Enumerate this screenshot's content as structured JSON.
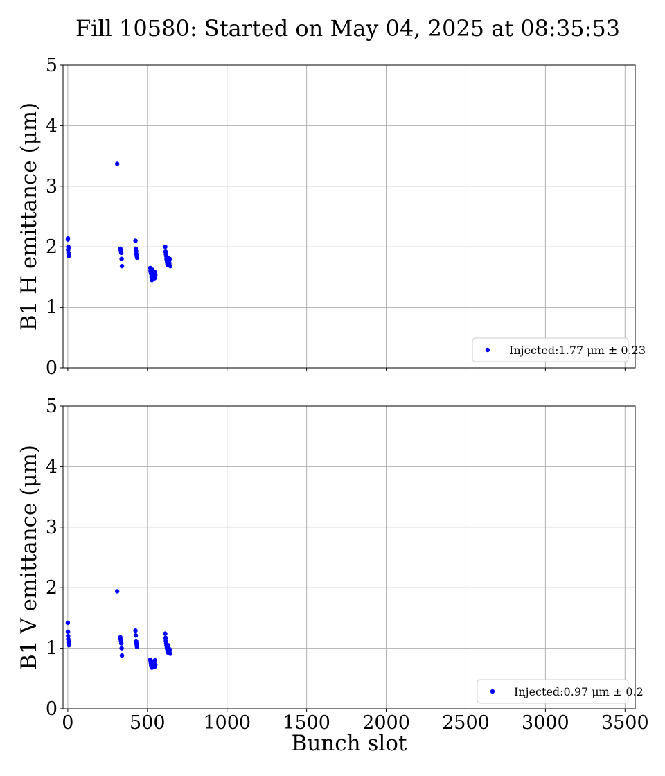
{
  "figure": {
    "title": "Fill 10580: Started on May 04, 2025 at 08:35:53"
  },
  "chart_data": [
    {
      "type": "scatter",
      "ylabel": "B1 H emittance (μm)",
      "xlabel": "",
      "xlim": [
        -30,
        3564
      ],
      "ylim": [
        0,
        5
      ],
      "xticks": [
        0,
        500,
        1000,
        1500,
        2000,
        2500,
        3000,
        3500
      ],
      "yticks": [
        0,
        1,
        2,
        3,
        4,
        5
      ],
      "show_xtick_labels": false,
      "grid": true,
      "legend_position": "lower-right",
      "color": "#0000ff",
      "series": [
        {
          "name": "Injected:1.77 μm ± 0.23",
          "points": [
            [
              0,
              2.12
            ],
            [
              1,
              2.14
            ],
            [
              2,
              1.95
            ],
            [
              3,
              2.0
            ],
            [
              4,
              1.9
            ],
            [
              5,
              1.98
            ],
            [
              6,
              1.85
            ],
            [
              7,
              1.88
            ],
            [
              310,
              3.37
            ],
            [
              330,
              1.97
            ],
            [
              332,
              1.95
            ],
            [
              334,
              1.92
            ],
            [
              336,
              1.9
            ],
            [
              338,
              1.8
            ],
            [
              340,
              1.68
            ],
            [
              425,
              2.1
            ],
            [
              427,
              1.97
            ],
            [
              429,
              1.93
            ],
            [
              431,
              1.88
            ],
            [
              433,
              1.85
            ],
            [
              435,
              1.82
            ],
            [
              518,
              1.65
            ],
            [
              520,
              1.6
            ],
            [
              522,
              1.57
            ],
            [
              524,
              1.55
            ],
            [
              526,
              1.5
            ],
            [
              528,
              1.45
            ],
            [
              532,
              1.62
            ],
            [
              538,
              1.55
            ],
            [
              542,
              1.5
            ],
            [
              545,
              1.48
            ],
            [
              548,
              1.58
            ],
            [
              550,
              1.53
            ],
            [
              612,
              2.0
            ],
            [
              614,
              1.92
            ],
            [
              616,
              1.88
            ],
            [
              618,
              1.85
            ],
            [
              620,
              1.8
            ],
            [
              622,
              1.78
            ],
            [
              624,
              1.75
            ],
            [
              626,
              1.72
            ],
            [
              628,
              1.7
            ],
            [
              630,
              1.82
            ],
            [
              634,
              1.76
            ],
            [
              638,
              1.73
            ],
            [
              640,
              1.8
            ],
            [
              644,
              1.68
            ]
          ]
        }
      ]
    },
    {
      "type": "scatter",
      "ylabel": "B1 V emittance (μm)",
      "xlabel": "Bunch slot",
      "xlim": [
        -30,
        3564
      ],
      "ylim": [
        0,
        5
      ],
      "xticks": [
        0,
        500,
        1000,
        1500,
        2000,
        2500,
        3000,
        3500
      ],
      "yticks": [
        0,
        1,
        2,
        3,
        4,
        5
      ],
      "show_xtick_labels": true,
      "grid": true,
      "legend_position": "lower-right",
      "color": "#0000ff",
      "series": [
        {
          "name": "Injected:0.97 μm ± 0.2",
          "points": [
            [
              0,
              1.42
            ],
            [
              1,
              1.27
            ],
            [
              2,
              1.2
            ],
            [
              3,
              1.15
            ],
            [
              4,
              1.1
            ],
            [
              5,
              1.12
            ],
            [
              6,
              1.07
            ],
            [
              7,
              1.05
            ],
            [
              310,
              1.94
            ],
            [
              330,
              1.18
            ],
            [
              332,
              1.15
            ],
            [
              334,
              1.12
            ],
            [
              336,
              1.08
            ],
            [
              338,
              1.0
            ],
            [
              340,
              0.88
            ],
            [
              425,
              1.29
            ],
            [
              427,
              1.21
            ],
            [
              429,
              1.12
            ],
            [
              431,
              1.08
            ],
            [
              433,
              1.05
            ],
            [
              435,
              1.02
            ],
            [
              518,
              0.81
            ],
            [
              520,
              0.78
            ],
            [
              522,
              0.75
            ],
            [
              524,
              0.72
            ],
            [
              526,
              0.7
            ],
            [
              528,
              0.68
            ],
            [
              532,
              0.78
            ],
            [
              538,
              0.74
            ],
            [
              542,
              0.71
            ],
            [
              545,
              0.69
            ],
            [
              548,
              0.8
            ],
            [
              550,
              0.73
            ],
            [
              612,
              1.24
            ],
            [
              614,
              1.17
            ],
            [
              616,
              1.12
            ],
            [
              618,
              1.08
            ],
            [
              620,
              1.05
            ],
            [
              622,
              1.02
            ],
            [
              624,
              0.99
            ],
            [
              626,
              0.96
            ],
            [
              628,
              0.93
            ],
            [
              630,
              1.05
            ],
            [
              634,
              1.0
            ],
            [
              638,
              0.95
            ],
            [
              640,
              0.98
            ],
            [
              644,
              0.91
            ]
          ]
        }
      ]
    }
  ]
}
